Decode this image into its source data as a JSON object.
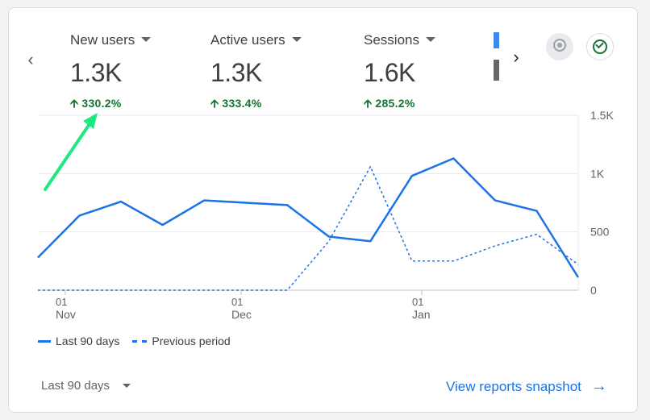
{
  "metrics": [
    {
      "label": "New users",
      "value": "1.3K",
      "change": "330.2%"
    },
    {
      "label": "Active users",
      "value": "1.3K",
      "change": "333.4%"
    },
    {
      "label": "Sessions",
      "value": "1.6K",
      "change": "285.2%"
    }
  ],
  "legend": {
    "current": "Last 90 days",
    "previous": "Previous period"
  },
  "footer": {
    "range_label": "Last 90 days",
    "snapshot_label": "View reports snapshot"
  },
  "icons": {
    "prev": "chevron-left-icon",
    "next": "chevron-right-icon",
    "badge": "medal-icon",
    "check": "check-circle-icon",
    "arrow": "arrow-right-icon"
  },
  "colors": {
    "accent": "#1a73e8",
    "positive": "#137333",
    "annotation": "#1de97d"
  },
  "chart_data": {
    "type": "line",
    "y_ticks": [
      "1.5K",
      "1K",
      "500",
      "0"
    ],
    "ylim": [
      0,
      1500
    ],
    "x_ticks": [
      {
        "day": "01",
        "month": "Nov"
      },
      {
        "day": "01",
        "month": "Dec"
      },
      {
        "day": "01",
        "month": "Jan"
      }
    ],
    "series": [
      {
        "name": "Last 90 days",
        "style": "solid",
        "values": [
          280,
          640,
          760,
          560,
          770,
          750,
          730,
          460,
          420,
          980,
          1130,
          770,
          680,
          110
        ]
      },
      {
        "name": "Previous period",
        "style": "dashed",
        "values": [
          0,
          0,
          0,
          0,
          0,
          0,
          0,
          420,
          1060,
          250,
          250,
          380,
          480,
          220
        ]
      }
    ]
  }
}
